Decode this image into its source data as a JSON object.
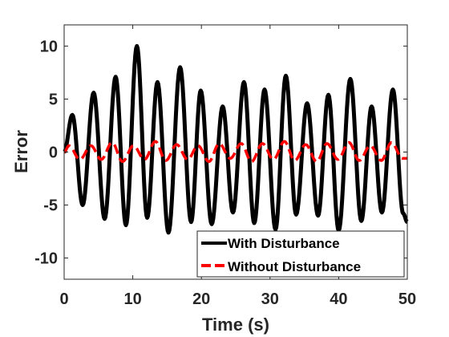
{
  "chart_data": {
    "type": "line",
    "title": "",
    "xlabel": "Time (s)",
    "ylabel": "Error",
    "xlim": [
      0,
      50
    ],
    "ylim": [
      -12,
      12
    ],
    "x_ticks": [
      0,
      10,
      20,
      30,
      40,
      50
    ],
    "y_ticks": [
      -10,
      -5,
      0,
      5,
      10
    ],
    "x_tick_labels": [
      "0",
      "10",
      "20",
      "30",
      "40",
      "50"
    ],
    "y_tick_labels": [
      "-10",
      "-5",
      "0",
      "5",
      "10"
    ],
    "grid": false,
    "legend_position": "bottom-right",
    "series": [
      {
        "name": "With Disturbance",
        "color": "#000000",
        "style": "solid",
        "peaks": [
          [
            0,
            0
          ],
          [
            1.2,
            3.5
          ],
          [
            2.7,
            -5.0
          ],
          [
            4.3,
            5.6
          ],
          [
            5.9,
            -6.3
          ],
          [
            7.5,
            7.1
          ],
          [
            9.0,
            -6.9
          ],
          [
            10.6,
            10.0
          ],
          [
            12.1,
            -6.2
          ],
          [
            13.6,
            6.6
          ],
          [
            15.2,
            -7.6
          ],
          [
            16.9,
            8.0
          ],
          [
            18.5,
            -6.6
          ],
          [
            19.9,
            5.8
          ],
          [
            21.5,
            -6.8
          ],
          [
            23.1,
            4.3
          ],
          [
            24.6,
            -5.7
          ],
          [
            26.2,
            6.6
          ],
          [
            27.7,
            -6.7
          ],
          [
            29.2,
            5.9
          ],
          [
            30.8,
            -7.3
          ],
          [
            32.3,
            7.2
          ],
          [
            33.8,
            -5.9
          ],
          [
            35.4,
            4.6
          ],
          [
            37.0,
            -6.0
          ],
          [
            38.5,
            5.4
          ],
          [
            40.0,
            -7.4
          ],
          [
            41.7,
            6.9
          ],
          [
            43.3,
            -6.5
          ],
          [
            44.8,
            4.3
          ],
          [
            46.3,
            -5.7
          ],
          [
            47.9,
            5.9
          ],
          [
            49.4,
            -5.8
          ],
          [
            50.0,
            -6.6
          ]
        ]
      },
      {
        "name": "Without Disturbance",
        "color": "#ff0000",
        "style": "dashed",
        "peaks": [
          [
            0,
            0
          ],
          [
            0.7,
            0.6
          ],
          [
            2.3,
            -0.7
          ],
          [
            3.9,
            0.6
          ],
          [
            5.4,
            -0.7
          ],
          [
            7.0,
            0.9
          ],
          [
            8.5,
            -0.9
          ],
          [
            10.1,
            0.6
          ],
          [
            11.7,
            -0.7
          ],
          [
            13.3,
            1.0
          ],
          [
            14.8,
            -0.8
          ],
          [
            16.4,
            0.7
          ],
          [
            18.0,
            -0.7
          ],
          [
            19.5,
            0.6
          ],
          [
            21.1,
            -0.9
          ],
          [
            22.6,
            0.8
          ],
          [
            24.2,
            -0.6
          ],
          [
            25.8,
            0.8
          ],
          [
            27.3,
            -0.9
          ],
          [
            28.9,
            0.8
          ],
          [
            30.5,
            -0.7
          ],
          [
            32.1,
            1.0
          ],
          [
            33.6,
            -0.8
          ],
          [
            35.2,
            0.7
          ],
          [
            36.8,
            -0.9
          ],
          [
            38.3,
            0.8
          ],
          [
            39.9,
            -0.7
          ],
          [
            41.5,
            0.9
          ],
          [
            43.0,
            -0.8
          ],
          [
            44.6,
            0.6
          ],
          [
            46.2,
            -0.8
          ],
          [
            47.7,
            0.9
          ],
          [
            49.3,
            -0.6
          ],
          [
            50.0,
            -0.6
          ]
        ]
      }
    ]
  }
}
